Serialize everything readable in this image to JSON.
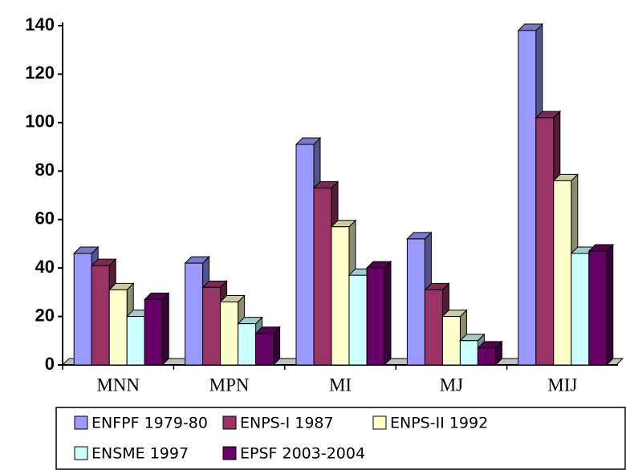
{
  "chart_data": {
    "type": "bar3d",
    "categories": [
      "MNN",
      "MPN",
      "MI",
      "MJ",
      "MIJ"
    ],
    "series": [
      {
        "name": "ENFPF 1979-80",
        "color": "#9999ff",
        "values": [
          46,
          42,
          91,
          52,
          138
        ]
      },
      {
        "name": "ENPS-I 1987",
        "color": "#993366",
        "values": [
          41,
          32,
          73,
          31,
          102
        ]
      },
      {
        "name": "ENPS-II 1992",
        "color": "#ffffcc",
        "values": [
          31,
          26,
          57,
          20,
          76
        ]
      },
      {
        "name": "ENSME 1997",
        "color": "#ccffff",
        "values": [
          20,
          17,
          37,
          10,
          46
        ]
      },
      {
        "name": "EPSF 2003-2004",
        "color": "#660066",
        "values": [
          27,
          13,
          40,
          7,
          47
        ]
      }
    ],
    "ylim": [
      0,
      140
    ],
    "yticks": [
      0,
      20,
      40,
      60,
      80,
      100,
      120,
      140
    ],
    "legend": "bottom"
  }
}
